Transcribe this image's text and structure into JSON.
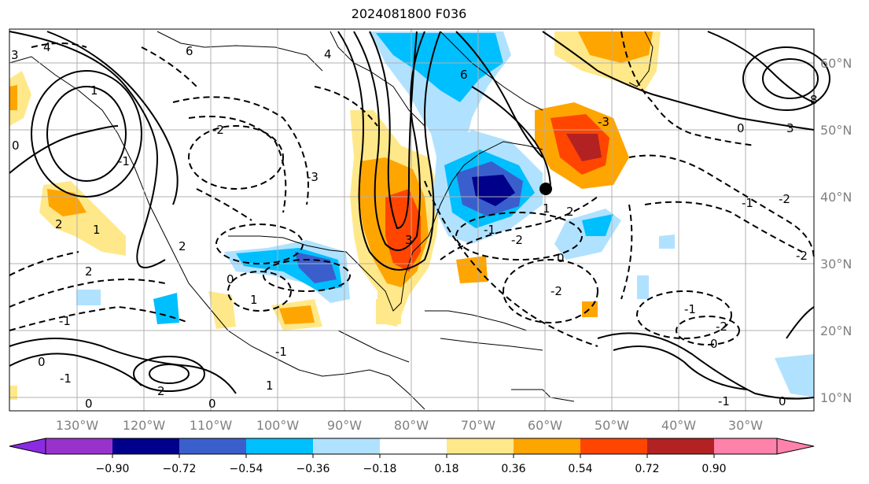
{
  "title": "2024081800 F036",
  "map": {
    "lon_labels": [
      "130°W",
      "120°W",
      "110°W",
      "100°W",
      "90°W",
      "80°W",
      "70°W",
      "60°W",
      "50°W",
      "40°W",
      "30°W"
    ],
    "lat_labels": [
      "60°N",
      "50°N",
      "40°N",
      "30°N",
      "20°N",
      "10°N"
    ]
  },
  "colorbar": {
    "ticks": [
      "−0.90",
      "−0.72",
      "−0.54",
      "−0.36",
      "−0.18",
      "0.18",
      "0.36",
      "0.54",
      "0.72",
      "0.90"
    ],
    "colors": {
      "under": "#8a2be2",
      "bins": [
        "#9932cc",
        "#00008b",
        "#3a5fcd",
        "#00bfff",
        "#b0e2ff",
        "#ffffff",
        "#ffe88a",
        "#ffa500",
        "#ff4500",
        "#b22222"
      ],
      "over": "#ff82ab"
    }
  },
  "contour_labels": [
    "3",
    "4",
    "6",
    "4",
    "1",
    "-1",
    "-2",
    "-3",
    "0",
    "2",
    "1",
    "6",
    "8",
    "3",
    "0",
    "-1",
    "-2",
    "-3",
    "1",
    "2",
    "0",
    "-1",
    "-2",
    "0",
    "-2",
    "2",
    "1",
    "3",
    "-1",
    "-2",
    "-1",
    "0",
    "-1",
    "0",
    "0",
    "-1",
    "2",
    "0",
    "1",
    "2",
    "-2",
    "-1",
    "0"
  ],
  "colors": {
    "gridline": "#b0b0b0",
    "coast": "#000000",
    "contour": "#000000",
    "label_gray": "#808080"
  }
}
